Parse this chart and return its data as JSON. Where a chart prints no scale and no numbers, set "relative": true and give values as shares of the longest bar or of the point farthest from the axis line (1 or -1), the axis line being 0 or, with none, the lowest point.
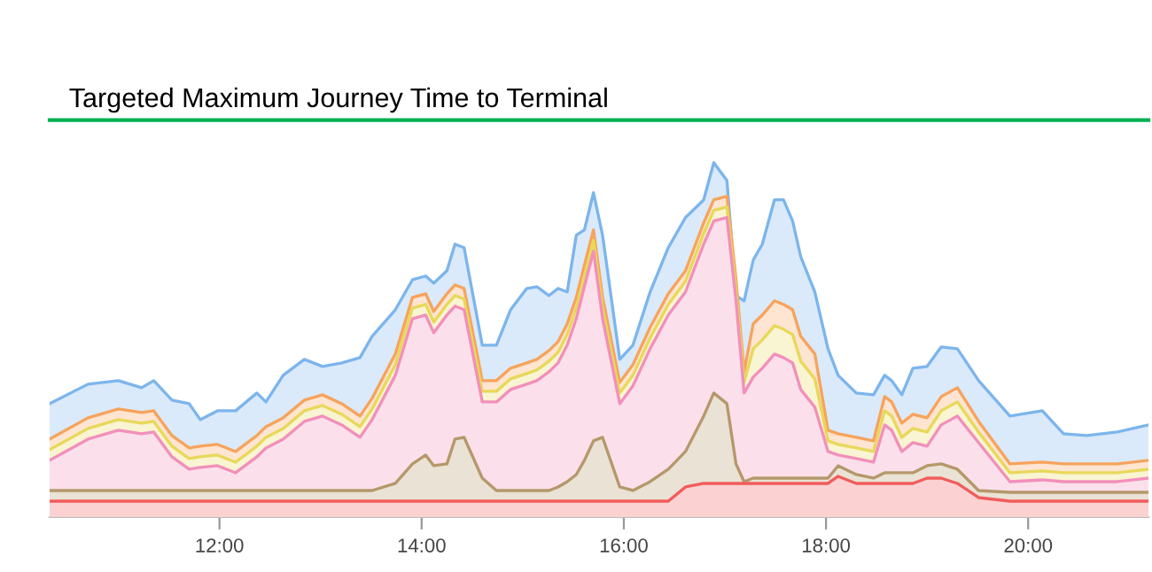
{
  "chart_data": {
    "type": "area",
    "relative": true,
    "x": [
      10.32,
      10.7,
      11.0,
      11.23,
      11.35,
      11.53,
      11.7,
      11.81,
      11.98,
      12.16,
      12.37,
      12.46,
      12.63,
      12.84,
      13.02,
      13.21,
      13.39,
      13.51,
      13.74,
      13.91,
      14.04,
      14.12,
      14.25,
      14.33,
      14.42,
      14.6,
      14.74,
      14.88,
      15.04,
      15.14,
      15.26,
      15.35,
      15.44,
      15.53,
      15.61,
      15.7,
      15.79,
      15.96,
      16.09,
      16.26,
      16.44,
      16.61,
      16.79,
      16.89,
      17.02,
      17.11,
      17.19,
      17.28,
      17.37,
      17.49,
      17.58,
      17.67,
      17.75,
      17.89,
      18.02,
      18.12,
      18.3,
      18.47,
      18.58,
      18.65,
      18.75,
      18.86,
      19.0,
      19.14,
      19.3,
      19.51,
      19.82,
      20.14,
      20.35,
      20.58,
      20.88,
      21.19
    ],
    "xlim": [
      10.32,
      21.19
    ],
    "xticks": [
      {
        "value": 12,
        "label": "12:00"
      },
      {
        "value": 14,
        "label": "14:00"
      },
      {
        "value": 16,
        "label": "16:00"
      },
      {
        "value": 18,
        "label": "18:00"
      },
      {
        "value": 20,
        "label": "20:00"
      }
    ],
    "series": [
      {
        "color": "#7cb5ec",
        "values": [
          0.32,
          0.375,
          0.385,
          0.365,
          0.385,
          0.33,
          0.32,
          0.275,
          0.3,
          0.3,
          0.35,
          0.325,
          0.4,
          0.445,
          0.425,
          0.435,
          0.45,
          0.51,
          0.585,
          0.67,
          0.68,
          0.66,
          0.695,
          0.77,
          0.76,
          0.485,
          0.485,
          0.585,
          0.645,
          0.65,
          0.625,
          0.645,
          0.635,
          0.795,
          0.81,
          0.915,
          0.795,
          0.445,
          0.485,
          0.635,
          0.76,
          0.845,
          0.895,
          1,
          0.95,
          0.625,
          0.61,
          0.725,
          0.77,
          0.895,
          0.895,
          0.835,
          0.735,
          0.635,
          0.475,
          0.4,
          0.35,
          0.345,
          0.4,
          0.385,
          0.345,
          0.42,
          0.425,
          0.48,
          0.475,
          0.385,
          0.285,
          0.3,
          0.235,
          0.23,
          0.24,
          0.26
        ]
      },
      {
        "color": "#f7a35c",
        "values": [
          0.22,
          0.28,
          0.305,
          0.295,
          0.3,
          0.23,
          0.195,
          0.2,
          0.205,
          0.185,
          0.23,
          0.255,
          0.28,
          0.33,
          0.345,
          0.32,
          0.285,
          0.335,
          0.46,
          0.62,
          0.63,
          0.58,
          0.63,
          0.655,
          0.645,
          0.385,
          0.385,
          0.42,
          0.435,
          0.445,
          0.47,
          0.495,
          0.545,
          0.62,
          0.71,
          0.81,
          0.62,
          0.38,
          0.43,
          0.535,
          0.63,
          0.695,
          0.83,
          0.895,
          0.905,
          0.67,
          0.41,
          0.545,
          0.57,
          0.61,
          0.6,
          0.585,
          0.51,
          0.46,
          0.245,
          0.235,
          0.225,
          0.215,
          0.34,
          0.325,
          0.265,
          0.29,
          0.28,
          0.34,
          0.365,
          0.27,
          0.15,
          0.155,
          0.15,
          0.15,
          0.15,
          0.16
        ]
      },
      {
        "color": "#e8d85a",
        "values": [
          0.19,
          0.25,
          0.275,
          0.265,
          0.27,
          0.2,
          0.165,
          0.17,
          0.175,
          0.155,
          0.2,
          0.225,
          0.25,
          0.3,
          0.315,
          0.29,
          0.255,
          0.305,
          0.43,
          0.59,
          0.6,
          0.55,
          0.6,
          0.625,
          0.615,
          0.355,
          0.355,
          0.39,
          0.405,
          0.415,
          0.44,
          0.465,
          0.515,
          0.59,
          0.68,
          0.78,
          0.59,
          0.35,
          0.4,
          0.505,
          0.6,
          0.665,
          0.8,
          0.865,
          0.875,
          0.64,
          0.38,
          0.475,
          0.5,
          0.54,
          0.53,
          0.515,
          0.44,
          0.39,
          0.215,
          0.205,
          0.195,
          0.185,
          0.3,
          0.285,
          0.225,
          0.25,
          0.24,
          0.3,
          0.325,
          0.24,
          0.125,
          0.13,
          0.125,
          0.125,
          0.125,
          0.135
        ]
      },
      {
        "color": "#f28fbb",
        "values": [
          0.16,
          0.22,
          0.245,
          0.235,
          0.24,
          0.17,
          0.135,
          0.14,
          0.145,
          0.125,
          0.17,
          0.195,
          0.22,
          0.27,
          0.285,
          0.26,
          0.225,
          0.275,
          0.4,
          0.56,
          0.57,
          0.52,
          0.57,
          0.595,
          0.585,
          0.325,
          0.325,
          0.36,
          0.375,
          0.385,
          0.41,
          0.435,
          0.485,
          0.56,
          0.65,
          0.75,
          0.56,
          0.32,
          0.37,
          0.475,
          0.57,
          0.635,
          0.77,
          0.835,
          0.845,
          0.61,
          0.35,
          0.395,
          0.42,
          0.46,
          0.45,
          0.435,
          0.36,
          0.31,
          0.185,
          0.175,
          0.165,
          0.155,
          0.26,
          0.245,
          0.185,
          0.21,
          0.2,
          0.26,
          0.285,
          0.21,
          0.1,
          0.105,
          0.1,
          0.1,
          0.1,
          0.11
        ]
      },
      {
        "color": "#b5986a",
        "values": [
          0.075,
          0.075,
          0.075,
          0.075,
          0.075,
          0.075,
          0.075,
          0.075,
          0.075,
          0.075,
          0.075,
          0.075,
          0.075,
          0.075,
          0.075,
          0.075,
          0.075,
          0.075,
          0.095,
          0.15,
          0.175,
          0.145,
          0.15,
          0.22,
          0.225,
          0.11,
          0.075,
          0.075,
          0.075,
          0.075,
          0.075,
          0.085,
          0.1,
          0.12,
          0.16,
          0.215,
          0.225,
          0.085,
          0.075,
          0.1,
          0.135,
          0.185,
          0.285,
          0.35,
          0.32,
          0.15,
          0.1,
          0.11,
          0.11,
          0.11,
          0.11,
          0.11,
          0.11,
          0.11,
          0.11,
          0.145,
          0.12,
          0.11,
          0.125,
          0.125,
          0.125,
          0.125,
          0.145,
          0.15,
          0.135,
          0.075,
          0.07,
          0.07,
          0.07,
          0.07,
          0.07,
          0.07
        ]
      },
      {
        "color": "#f15c5c",
        "values": [
          0.045,
          0.045,
          0.045,
          0.045,
          0.045,
          0.045,
          0.045,
          0.045,
          0.045,
          0.045,
          0.045,
          0.045,
          0.045,
          0.045,
          0.045,
          0.045,
          0.045,
          0.045,
          0.045,
          0.045,
          0.045,
          0.045,
          0.045,
          0.045,
          0.045,
          0.045,
          0.045,
          0.045,
          0.045,
          0.045,
          0.045,
          0.045,
          0.045,
          0.045,
          0.045,
          0.045,
          0.045,
          0.045,
          0.045,
          0.045,
          0.045,
          0.085,
          0.095,
          0.095,
          0.095,
          0.095,
          0.095,
          0.095,
          0.095,
          0.095,
          0.095,
          0.095,
          0.095,
          0.095,
          0.095,
          0.115,
          0.095,
          0.095,
          0.095,
          0.095,
          0.095,
          0.095,
          0.11,
          0.11,
          0.095,
          0.055,
          0.045,
          0.045,
          0.045,
          0.045,
          0.045,
          0.045
        ]
      }
    ],
    "ref_lines": [
      {
        "axis": "y",
        "value": 1.12,
        "label": "Targeted Maximum Journey Time to Terminal",
        "color": "#00b050"
      }
    ]
  }
}
